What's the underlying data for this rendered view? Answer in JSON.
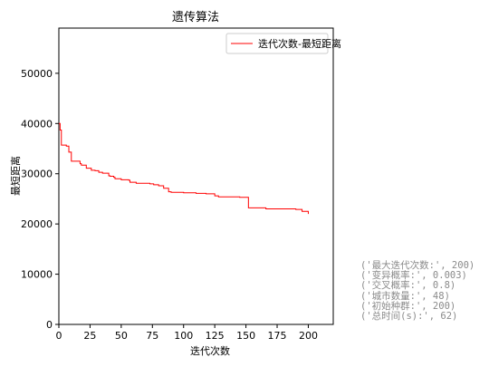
{
  "chart_data": {
    "type": "line",
    "title": "遗传算法",
    "xlabel": "迭代次数",
    "ylabel": "最短距离",
    "xlim": [
      0,
      220
    ],
    "ylim": [
      0,
      59000
    ],
    "xticks": [
      0,
      25,
      50,
      75,
      100,
      125,
      150,
      175,
      200
    ],
    "yticks": [
      0,
      10000,
      20000,
      30000,
      40000,
      50000
    ],
    "xtick_labels": [
      "0",
      "25",
      "50",
      "75",
      "100",
      "125",
      "150",
      "175",
      "200"
    ],
    "ytick_labels": [
      "0",
      "10000",
      "20000",
      "30000",
      "40000",
      "50000"
    ],
    "legend_position": "upper-right",
    "grid": false,
    "series": [
      {
        "name": "迭代次数-最短距离",
        "color": "#ff0000",
        "x": [
          0,
          1,
          2,
          6,
          8,
          10,
          17,
          18,
          22,
          26,
          29,
          32,
          35,
          40,
          41,
          44,
          45,
          50,
          53,
          56,
          57,
          62,
          73,
          76,
          80,
          84,
          88,
          90,
          100,
          110,
          118,
          125,
          128,
          145,
          151,
          152,
          166,
          190,
          195,
          200
        ],
        "y": [
          40000,
          38700,
          35700,
          35500,
          34300,
          32500,
          32000,
          31700,
          31100,
          30700,
          30600,
          30300,
          30100,
          29600,
          29500,
          29300,
          29000,
          28800,
          28800,
          28700,
          28300,
          28100,
          28000,
          27800,
          27600,
          27100,
          26400,
          26300,
          26200,
          26100,
          26000,
          25600,
          25400,
          25300,
          25300,
          23200,
          23000,
          22900,
          22500,
          22000
        ]
      }
    ]
  },
  "info_lines": [
    "('最大迭代次数:', 200)",
    "('变异概率:', 0.003)",
    "('交叉概率:', 0.8)",
    "('城市数量:', 48)",
    "('初始种群:', 200)",
    "('总时间(s):', 62)"
  ]
}
